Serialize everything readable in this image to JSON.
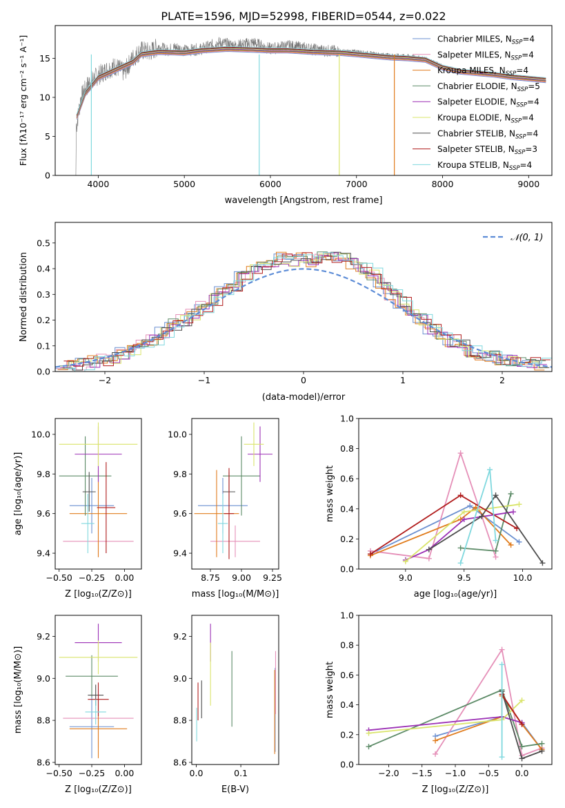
{
  "figure": {
    "title": "PLATE=1596, MJD=52998, FIBERID=0544, z=0.022"
  },
  "colors": {
    "chabrier_miles": "#6a8fd0",
    "salpeter_miles": "#e58fb8",
    "kroupa_miles": "#e07b1b",
    "chabrier_elodie": "#5b8a66",
    "salpeter_elodie": "#9b2fb5",
    "kroupa_elodie": "#d9e46a",
    "chabrier_stelib": "#4d4d4d",
    "salpeter_stelib": "#b01b1b",
    "kroupa_stelib": "#7fd8de",
    "normal_curve": "#5b8bd6",
    "grid": "#b0b0b0"
  },
  "chart_data": [
    {
      "type": "line",
      "panel": "spectrum",
      "title": "PLATE=1596, MJD=52998, FIBERID=0544, z=0.022",
      "xlabel": "wavelength [Angstrom, rest frame]",
      "ylabel": "Flux [f_λ10^-17 erg cm^-2 s^-1 A^-1]",
      "xlim": [
        3500,
        9270
      ],
      "ylim": [
        0,
        19.2
      ],
      "xticks": [
        4000,
        5000,
        6000,
        7000,
        8000,
        9000
      ],
      "yticks": [
        0,
        5,
        10,
        15
      ],
      "grid": false,
      "legend_position": "top-right",
      "data_line": {
        "x": [
          3750,
          3800,
          3900,
          4000,
          4100,
          4200,
          4300,
          4400,
          4500,
          4600,
          4700,
          4800,
          4900,
          5000,
          5200,
          5400,
          5600,
          5800,
          6000,
          6200,
          6400,
          6600,
          6800,
          7000,
          7200,
          7400,
          7600,
          7800,
          8000,
          8200,
          8400,
          8600,
          8800,
          9000,
          9200
        ],
        "y": [
          6.5,
          10.0,
          12.0,
          12.8,
          13.5,
          14.0,
          13.2,
          15.0,
          16.0,
          15.8,
          16.5,
          16.0,
          16.4,
          16.0,
          16.2,
          17.0,
          16.6,
          17.0,
          16.2,
          16.6,
          16.3,
          16.0,
          15.9,
          15.9,
          15.6,
          15.4,
          15.3,
          15.0,
          14.0,
          13.4,
          13.2,
          13.0,
          12.6,
          12.4,
          12.1
        ]
      },
      "series": [
        {
          "name": "Chabrier MILES, N_SSP=4",
          "color_key": "chabrier_miles"
        },
        {
          "name": "Salpeter MILES, N_SSP=4",
          "color_key": "salpeter_miles"
        },
        {
          "name": "Kroupa MILES, N_SSP=4",
          "color_key": "kroupa_miles"
        },
        {
          "name": "Chabrier ELODIE, N_SSP=5",
          "color_key": "chabrier_elodie"
        },
        {
          "name": "Salpeter ELODIE, N_SSP=4",
          "color_key": "salpeter_elodie"
        },
        {
          "name": "Kroupa ELODIE, N_SSP=4",
          "color_key": "kroupa_elodie"
        },
        {
          "name": "Chabrier STELIB, N_SSP=4",
          "color_key": "chabrier_stelib"
        },
        {
          "name": "Salpeter STELIB, N_SSP=3",
          "color_key": "salpeter_stelib"
        },
        {
          "name": "Kroupa STELIB, N_SSP=4",
          "color_key": "kroupa_stelib"
        }
      ],
      "model_x": [
        3750,
        3850,
        4000,
        4200,
        4400,
        4500,
        4700,
        5000,
        5200,
        5500,
        5800,
        6000,
        6200,
        6500,
        6800,
        7000,
        7200,
        7400,
        7600,
        7800,
        8000,
        8200,
        8400,
        8600,
        8800,
        9000,
        9200
      ],
      "model_y": [
        7.5,
        10.5,
        12.5,
        13.5,
        14.5,
        15.5,
        15.8,
        15.7,
        16.0,
        16.2,
        16.1,
        16.0,
        16.0,
        15.8,
        15.7,
        15.5,
        15.3,
        15.1,
        15.0,
        14.8,
        13.8,
        13.3,
        13.1,
        12.9,
        12.6,
        12.4,
        12.2
      ],
      "drops": [
        {
          "x": 3920,
          "color_key": "kroupa_stelib"
        },
        {
          "x": 5870,
          "color_key": "kroupa_stelib"
        },
        {
          "x": 6800,
          "color_key": "kroupa_elodie"
        },
        {
          "x": 7440,
          "color_key": "kroupa_miles"
        }
      ]
    },
    {
      "type": "line",
      "panel": "residuals",
      "xlabel": "(data-model)/error",
      "ylabel": "Normed distribution",
      "xlim": [
        -2.5,
        2.5
      ],
      "ylim": [
        0,
        0.58
      ],
      "xticks": [
        -2,
        -1,
        0,
        1,
        2
      ],
      "yticks": [
        0.0,
        0.1,
        0.2,
        0.3,
        0.4,
        0.5
      ],
      "grid": true,
      "legend_position": "top-right",
      "legend": "N(0,1)",
      "histogram_centers": [
        -2.4,
        -2.3,
        -2.2,
        -2.1,
        -2.0,
        -1.9,
        -1.8,
        -1.7,
        -1.6,
        -1.5,
        -1.4,
        -1.3,
        -1.2,
        -1.1,
        -1.0,
        -0.9,
        -0.8,
        -0.7,
        -0.6,
        -0.5,
        -0.4,
        -0.3,
        -0.2,
        -0.1,
        0.0,
        0.1,
        0.2,
        0.3,
        0.4,
        0.5,
        0.6,
        0.7,
        0.8,
        0.9,
        1.0,
        1.1,
        1.2,
        1.3,
        1.4,
        1.5,
        1.6,
        1.7,
        1.8,
        1.9,
        2.0,
        2.1,
        2.2,
        2.3,
        2.4
      ],
      "histogram_values": [
        0.02,
        0.025,
        0.03,
        0.04,
        0.045,
        0.055,
        0.07,
        0.08,
        0.1,
        0.12,
        0.15,
        0.18,
        0.2,
        0.22,
        0.25,
        0.28,
        0.31,
        0.33,
        0.37,
        0.4,
        0.42,
        0.43,
        0.44,
        0.43,
        0.44,
        0.43,
        0.45,
        0.44,
        0.45,
        0.42,
        0.4,
        0.38,
        0.34,
        0.3,
        0.27,
        0.24,
        0.2,
        0.17,
        0.14,
        0.12,
        0.1,
        0.08,
        0.07,
        0.06,
        0.05,
        0.045,
        0.04,
        0.035,
        0.03
      ]
    },
    {
      "type": "scatter",
      "panel": "age_vs_Z",
      "xlabel": "Z [log10(Z/Z_sun)]",
      "ylabel": "age  [log10(age/yr)]",
      "xlim": [
        -0.53,
        0.13
      ],
      "ylim": [
        9.32,
        10.08
      ],
      "xticks": [
        -0.5,
        -0.25,
        0.0
      ],
      "yticks": [
        9.4,
        9.6,
        9.8,
        10.0
      ],
      "points": [
        {
          "x": -0.25,
          "y": 9.64,
          "ex": 0.17,
          "ey": 0.14,
          "color_key": "chabrier_miles"
        },
        {
          "x": -0.2,
          "y": 9.46,
          "ex": 0.27,
          "ey": 0.08,
          "color_key": "salpeter_miles"
        },
        {
          "x": -0.2,
          "y": 9.6,
          "ex": 0.22,
          "ey": 0.22,
          "color_key": "kroupa_miles"
        },
        {
          "x": -0.3,
          "y": 9.79,
          "ex": 0.2,
          "ey": 0.2,
          "color_key": "chabrier_elodie"
        },
        {
          "x": -0.2,
          "y": 9.9,
          "ex": 0.18,
          "ey": 0.14,
          "color_key": "salpeter_elodie"
        },
        {
          "x": -0.2,
          "y": 9.95,
          "ex": 0.3,
          "ey": 0.11,
          "color_key": "kroupa_elodie"
        },
        {
          "x": -0.27,
          "y": 9.71,
          "ex": 0.05,
          "ey": 0.1,
          "color_key": "chabrier_stelib"
        },
        {
          "x": -0.14,
          "y": 9.63,
          "ex": 0.07,
          "ey": 0.23,
          "color_key": "salpeter_stelib"
        },
        {
          "x": -0.28,
          "y": 9.55,
          "ex": 0.05,
          "ey": 0.15,
          "color_key": "kroupa_stelib"
        }
      ]
    },
    {
      "type": "scatter",
      "panel": "age_vs_mass",
      "xlabel": "mass [log10(M/M_sun)]",
      "ylabel": "",
      "xlim": [
        8.6,
        9.3
      ],
      "ylim": [
        9.32,
        10.08
      ],
      "xticks": [
        8.75,
        9.0,
        9.25
      ],
      "yticks": [
        9.4,
        9.6,
        9.8,
        10.0
      ],
      "points": [
        {
          "x": 8.85,
          "y": 9.64,
          "ex": 0.2,
          "ey": 0.14,
          "color_key": "chabrier_miles"
        },
        {
          "x": 8.95,
          "y": 9.46,
          "ex": 0.2,
          "ey": 0.08,
          "color_key": "salpeter_miles"
        },
        {
          "x": 8.8,
          "y": 9.6,
          "ex": 0.18,
          "ey": 0.22,
          "color_key": "kroupa_miles"
        },
        {
          "x": 9.0,
          "y": 9.79,
          "ex": 0.15,
          "ey": 0.2,
          "color_key": "chabrier_elodie"
        },
        {
          "x": 9.15,
          "y": 9.9,
          "ex": 0.1,
          "ey": 0.14,
          "color_key": "salpeter_elodie"
        },
        {
          "x": 9.1,
          "y": 9.95,
          "ex": 0.08,
          "ey": 0.11,
          "color_key": "kroupa_elodie"
        },
        {
          "x": 8.9,
          "y": 9.71,
          "ex": 0.05,
          "ey": 0.1,
          "color_key": "chabrier_stelib"
        },
        {
          "x": 8.9,
          "y": 9.6,
          "ex": 0.04,
          "ey": 0.23,
          "color_key": "salpeter_stelib"
        },
        {
          "x": 8.85,
          "y": 9.55,
          "ex": 0.04,
          "ey": 0.15,
          "color_key": "kroupa_stelib"
        }
      ]
    },
    {
      "type": "line",
      "panel": "massweight_vs_age",
      "xlabel": "age  [log10(age/yr)]",
      "ylabel": "mass weight",
      "xlim": [
        8.6,
        10.25
      ],
      "ylim": [
        0,
        1.0
      ],
      "xticks": [
        9.0,
        9.5,
        10.0
      ],
      "yticks": [
        0.0,
        0.2,
        0.4,
        0.6,
        0.8,
        1.0
      ],
      "grid": true,
      "series": [
        {
          "color_key": "chabrier_miles",
          "x": [
            8.7,
            9.55,
            9.97
          ],
          "y": [
            0.1,
            0.42,
            0.18
          ]
        },
        {
          "color_key": "salpeter_miles",
          "x": [
            8.7,
            9.2,
            9.47,
            9.77
          ],
          "y": [
            0.12,
            0.07,
            0.77,
            0.08
          ]
        },
        {
          "color_key": "kroupa_miles",
          "x": [
            8.7,
            9.47,
            9.6,
            9.9
          ],
          "y": [
            0.09,
            0.33,
            0.41,
            0.16
          ]
        },
        {
          "color_key": "chabrier_elodie",
          "x": [
            9.47,
            9.77,
            9.9
          ],
          "y": [
            0.14,
            0.12,
            0.5
          ]
        },
        {
          "color_key": "salpeter_elodie",
          "x": [
            9.0,
            9.2,
            9.5,
            9.92
          ],
          "y": [
            0.06,
            0.13,
            0.33,
            0.38
          ]
        },
        {
          "color_key": "kroupa_elodie",
          "x": [
            9.0,
            9.5,
            9.97
          ],
          "y": [
            0.05,
            0.38,
            0.43
          ]
        },
        {
          "color_key": "chabrier_stelib",
          "x": [
            9.2,
            9.65,
            9.77,
            10.17
          ],
          "y": [
            0.13,
            0.35,
            0.49,
            0.04
          ]
        },
        {
          "color_key": "salpeter_stelib",
          "x": [
            8.7,
            9.47,
            9.95
          ],
          "y": [
            0.1,
            0.49,
            0.27
          ]
        },
        {
          "color_key": "kroupa_stelib",
          "x": [
            9.47,
            9.72,
            9.77
          ],
          "y": [
            0.04,
            0.66,
            0.19
          ]
        }
      ]
    },
    {
      "type": "scatter",
      "panel": "mass_vs_Z",
      "xlabel": "Z [log10(Z/Z_sun)]",
      "ylabel": "mass [log10(M/M_sun)]",
      "xlim": [
        -0.53,
        0.13
      ],
      "ylim": [
        8.59,
        9.3
      ],
      "xticks": [
        -0.5,
        -0.25,
        0.0
      ],
      "yticks": [
        8.6,
        8.8,
        9.0,
        9.2
      ],
      "points": [
        {
          "x": -0.25,
          "y": 8.77,
          "ex": 0.17,
          "ey": 0.15,
          "color_key": "chabrier_miles"
        },
        {
          "x": -0.2,
          "y": 8.81,
          "ex": 0.27,
          "ey": 0.14,
          "color_key": "salpeter_miles"
        },
        {
          "x": -0.2,
          "y": 8.76,
          "ex": 0.22,
          "ey": 0.14,
          "color_key": "kroupa_miles"
        },
        {
          "x": -0.25,
          "y": 9.01,
          "ex": 0.2,
          "ey": 0.1,
          "color_key": "chabrier_elodie"
        },
        {
          "x": -0.2,
          "y": 9.17,
          "ex": 0.18,
          "ey": 0.09,
          "color_key": "salpeter_elodie"
        },
        {
          "x": -0.2,
          "y": 9.1,
          "ex": 0.3,
          "ey": 0.08,
          "color_key": "kroupa_elodie"
        },
        {
          "x": -0.22,
          "y": 8.92,
          "ex": 0.06,
          "ey": 0.05,
          "color_key": "chabrier_stelib"
        },
        {
          "x": -0.2,
          "y": 8.9,
          "ex": 0.08,
          "ey": 0.08,
          "color_key": "salpeter_stelib"
        },
        {
          "x": -0.22,
          "y": 8.84,
          "ex": 0.08,
          "ey": 0.06,
          "color_key": "kroupa_stelib"
        }
      ]
    },
    {
      "type": "scatter",
      "panel": "mass_vs_EBV",
      "xlabel": "E(B-V)",
      "ylabel": "",
      "xlim": [
        -0.01,
        0.185
      ],
      "ylim": [
        8.59,
        9.3
      ],
      "xticks": [
        0.0,
        0.1
      ],
      "yticks": [
        8.6,
        8.8,
        9.0,
        9.2
      ],
      "points": [
        {
          "x": 0.177,
          "y": 8.85,
          "ey": 0.2,
          "color_key": "chabrier_miles"
        },
        {
          "x": 0.178,
          "y": 8.98,
          "ey": 0.15,
          "color_key": "salpeter_miles"
        },
        {
          "x": 0.176,
          "y": 8.84,
          "ey": 0.2,
          "color_key": "kroupa_miles"
        },
        {
          "x": 0.08,
          "y": 8.95,
          "ey": 0.18,
          "color_key": "chabrier_elodie"
        },
        {
          "x": 0.032,
          "y": 9.17,
          "ey": 0.09,
          "color_key": "salpeter_elodie"
        },
        {
          "x": 0.032,
          "y": 9.02,
          "ey": 0.15,
          "color_key": "kroupa_elodie"
        },
        {
          "x": 0.012,
          "y": 8.9,
          "ey": 0.09,
          "color_key": "chabrier_stelib"
        },
        {
          "x": 0.004,
          "y": 8.89,
          "ey": 0.09,
          "color_key": "salpeter_stelib"
        },
        {
          "x": 0.001,
          "y": 8.78,
          "ey": 0.08,
          "color_key": "kroupa_stelib"
        }
      ]
    },
    {
      "type": "line",
      "panel": "massweight_vs_Z",
      "xlabel": "Z [log10(Z/Z_sun)]",
      "ylabel": "mass weight",
      "xlim": [
        -2.45,
        0.45
      ],
      "ylim": [
        0,
        1.0
      ],
      "xticks": [
        -2.0,
        -1.5,
        -1.0,
        -0.5,
        0.0
      ],
      "yticks": [
        0.0,
        0.2,
        0.4,
        0.6,
        0.8,
        1.0
      ],
      "grid": true,
      "series": [
        {
          "color_key": "chabrier_miles",
          "x": [
            -1.3,
            -0.3,
            0.0,
            0.3
          ],
          "y": [
            0.19,
            0.32,
            0.28,
            0.1
          ]
        },
        {
          "color_key": "salpeter_miles",
          "x": [
            -1.3,
            -0.3,
            0.0,
            0.3
          ],
          "y": [
            0.07,
            0.77,
            0.06,
            0.11
          ]
        },
        {
          "color_key": "kroupa_miles",
          "x": [
            -1.3,
            -0.3,
            -0.3,
            0.0,
            0.3
          ],
          "y": [
            0.16,
            0.32,
            0.46,
            0.27,
            0.1
          ]
        },
        {
          "color_key": "chabrier_elodie",
          "x": [
            -2.3,
            -0.3,
            0.0,
            0.3
          ],
          "y": [
            0.12,
            0.5,
            0.12,
            0.14
          ]
        },
        {
          "color_key": "salpeter_elodie",
          "x": [
            -2.3,
            -0.3,
            0.0
          ],
          "y": [
            0.23,
            0.32,
            0.28
          ]
        },
        {
          "color_key": "kroupa_elodie",
          "x": [
            -2.3,
            -0.3,
            0.0
          ],
          "y": [
            0.21,
            0.3,
            0.43
          ]
        },
        {
          "color_key": "chabrier_stelib",
          "x": [
            -0.3,
            0.0,
            0.3
          ],
          "y": [
            0.49,
            0.04,
            0.09
          ]
        },
        {
          "color_key": "salpeter_stelib",
          "x": [
            -0.3,
            0.0
          ],
          "y": [
            0.47,
            0.27
          ]
        },
        {
          "color_key": "kroupa_stelib",
          "x": [
            -0.3,
            -0.3
          ],
          "y": [
            0.67,
            0.05
          ]
        }
      ]
    }
  ]
}
